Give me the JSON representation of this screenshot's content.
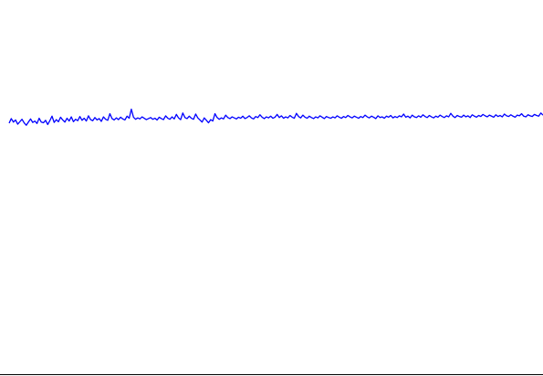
{
  "chart_data": {
    "type": "line",
    "series": [
      {
        "color": "#0000ff",
        "values": [
          -0.5,
          0.8,
          -0.2,
          0.4,
          -0.8,
          -0.1,
          0.6,
          -0.4,
          -1.1,
          -0.2,
          0.7,
          -0.3,
          0.1,
          -0.6,
          0.9,
          -0.2,
          -0.4,
          0.3,
          -0.9,
          0.2,
          1.5,
          -0.3,
          0.5,
          -0.1,
          1.2,
          0.4,
          -0.2,
          0.9,
          0.1,
          1.3,
          -0.1,
          0.6,
          0.2,
          1.4,
          0.3,
          0.9,
          0.1,
          1.6,
          0.5,
          0.2,
          1.1,
          0.4,
          0.8,
          0.0,
          1.3,
          0.6,
          0.3,
          2.2,
          0.8,
          0.4,
          1.0,
          0.5,
          1.2,
          0.7,
          0.4,
          1.5,
          0.9,
          3.5,
          1.2,
          0.6,
          1.0,
          0.7,
          1.3,
          0.9,
          0.5,
          0.8,
          1.1,
          0.6,
          0.9,
          0.4,
          1.2,
          0.8,
          0.5,
          1.6,
          0.9,
          0.6,
          1.3,
          0.7,
          2.0,
          1.0,
          0.5,
          2.4,
          1.1,
          0.8,
          1.5,
          0.9,
          0.6,
          2.1,
          1.0,
          0.4,
          -0.2,
          1.0,
          0.3,
          -0.4,
          0.5,
          0.1,
          2.2,
          1.1,
          0.6,
          1.0,
          0.7,
          1.8,
          1.1,
          0.8,
          1.3,
          1.0,
          0.7,
          1.2,
          0.9,
          1.5,
          0.8,
          1.1,
          1.6,
          1.0,
          0.7,
          1.4,
          1.1,
          1.9,
          1.2,
          0.8,
          1.3,
          1.0,
          1.5,
          0.9,
          1.2,
          2.0,
          1.1,
          1.6,
          0.9,
          1.3,
          1.0,
          1.7,
          1.2,
          0.9,
          2.3,
          1.4,
          1.0,
          1.8,
          1.2,
          0.9,
          1.5,
          1.1,
          0.8,
          1.3,
          1.0,
          1.6,
          1.2,
          0.8,
          1.4,
          1.1,
          0.9,
          1.3,
          1.0,
          1.6,
          1.2,
          0.9,
          1.4,
          1.1,
          1.7,
          1.3,
          1.0,
          1.5,
          1.2,
          0.9,
          1.4,
          1.1,
          1.8,
          1.3,
          1.0,
          1.5,
          1.2,
          0.8,
          1.6,
          1.1,
          1.3,
          0.9,
          1.5,
          1.2,
          1.7,
          1.0,
          1.4,
          1.1,
          1.6,
          1.3,
          2.1,
          1.2,
          1.5,
          1.0,
          1.8,
          1.3,
          1.1,
          1.6,
          1.2,
          1.9,
          1.4,
          1.1,
          1.7,
          1.3,
          1.0,
          1.5,
          1.2,
          1.8,
          1.4,
          1.1,
          1.6,
          1.3,
          2.3,
          1.5,
          1.1,
          1.7,
          1.4,
          1.2,
          1.8,
          1.3,
          1.6,
          1.1,
          1.9,
          1.5,
          1.2,
          1.7,
          1.4,
          2.0,
          1.6,
          1.3,
          1.8,
          1.5,
          1.2,
          1.9,
          1.4,
          1.7,
          1.3,
          2.1,
          1.6,
          1.4,
          1.9,
          1.5,
          1.2,
          1.8,
          1.6,
          2.2,
          1.5,
          1.3,
          1.9,
          1.6,
          1.4,
          2.0,
          1.7,
          1.5,
          2.4,
          1.8
        ]
      }
    ],
    "ylim": [
      -3,
      6
    ]
  },
  "colors": {
    "line": "#0000ff",
    "axis": "#000000",
    "background": "#ffffff"
  }
}
